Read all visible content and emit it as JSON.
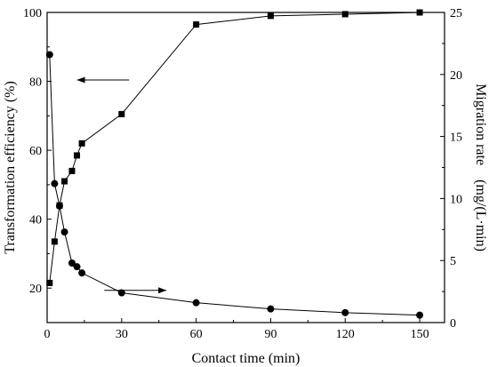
{
  "chart_data": {
    "type": "line",
    "xlabel": "Contact time (min)",
    "ylabel_left": "Transformation efficiency (%)",
    "ylabel_right": "Migration rate　(mg/(L·min)",
    "xlim": [
      0,
      160
    ],
    "ylim_left": [
      10,
      100
    ],
    "ylim_right": [
      0,
      25
    ],
    "x_ticks": [
      "0",
      "30",
      "60",
      "90",
      "120",
      "150"
    ],
    "y_left_ticks": [
      "20",
      "40",
      "60",
      "80",
      "100"
    ],
    "y_right_ticks": [
      "0",
      "5",
      "10",
      "15",
      "20",
      "25"
    ],
    "grid": false,
    "series": [
      {
        "axis": "left",
        "marker": "square",
        "x": [
          1,
          3,
          5,
          7,
          10,
          12,
          14,
          30,
          60,
          90,
          120,
          150
        ],
        "y": [
          21.5,
          33.5,
          44,
          51,
          54,
          58.5,
          62,
          70.5,
          96.5,
          99,
          99.5,
          100
        ]
      },
      {
        "axis": "right",
        "marker": "circle",
        "x": [
          1,
          3,
          5,
          7,
          10,
          12,
          14,
          30,
          60,
          90,
          120,
          150
        ],
        "y": [
          21.6,
          11.2,
          9.4,
          7.3,
          4.8,
          4.5,
          4.0,
          2.4,
          1.6,
          1.1,
          0.8,
          0.6
        ]
      }
    ],
    "annotations": [
      {
        "type": "arrow",
        "direction": "left",
        "from": [
          33,
          80.4
        ],
        "to": [
          12,
          80.4
        ]
      },
      {
        "type": "arrow",
        "direction": "right",
        "from": [
          23,
          2.6
        ],
        "to": [
          48,
          2.6
        ]
      }
    ]
  }
}
